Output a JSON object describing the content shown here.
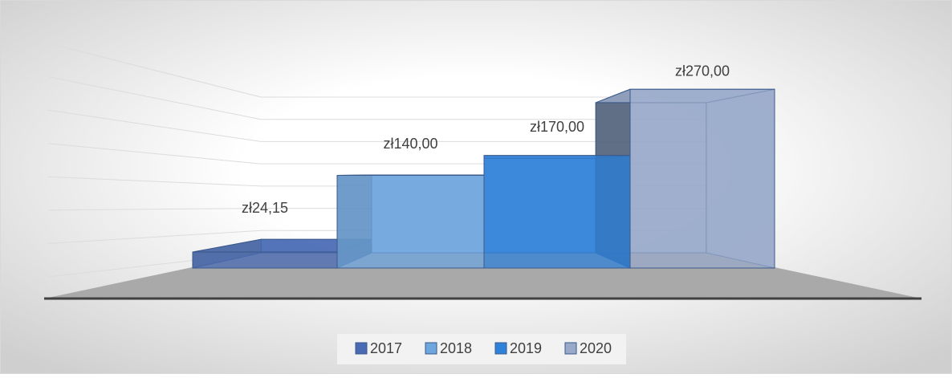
{
  "chart_data": {
    "type": "bar3d",
    "series": [
      {
        "name": "2017",
        "color": "#4a6bb4",
        "values": [
          24.15
        ],
        "value_labels": [
          "zł24,15"
        ]
      },
      {
        "name": "2018",
        "color": "#6ea6de",
        "values": [
          140
        ],
        "value_labels": [
          "zł140,00"
        ]
      },
      {
        "name": "2019",
        "color": "#2f82d9",
        "values": [
          170
        ],
        "value_labels": [
          "zł170,00"
        ]
      },
      {
        "name": "2020",
        "color": "#98a9c9",
        "values": [
          270
        ],
        "value_labels": [
          "zł270,00"
        ]
      }
    ],
    "ylim": [
      0,
      280
    ],
    "yticks": [
      0,
      40,
      80,
      120,
      160,
      200,
      240,
      280
    ],
    "grid": true,
    "legend": "bottom"
  }
}
